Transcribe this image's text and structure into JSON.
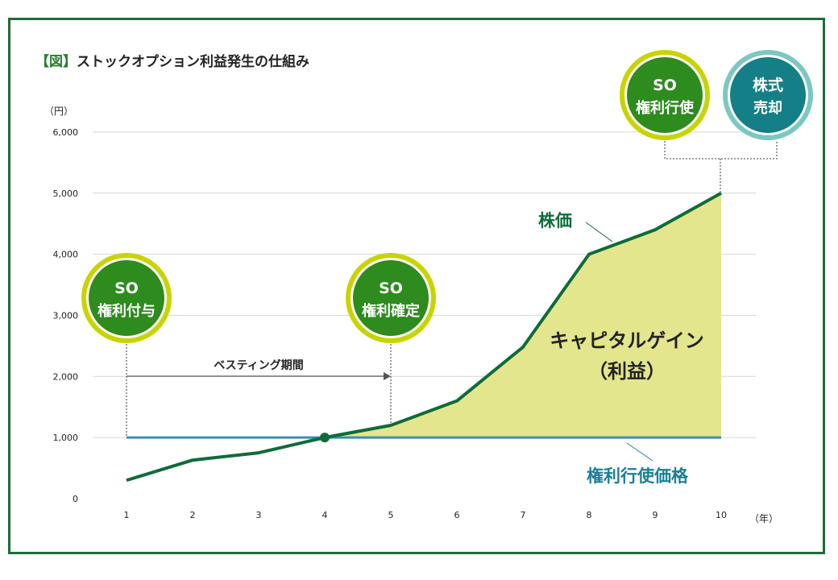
{
  "title": {
    "bracket": "【図】",
    "text": "ストックオプション利益発生の仕組み"
  },
  "chart_data": {
    "type": "line",
    "title": "ストックオプション利益発生の仕組み",
    "y_unit": "（円）",
    "x_unit": "（年）",
    "categories": [
      "1",
      "2",
      "3",
      "4",
      "5",
      "6",
      "7",
      "8",
      "9",
      "10"
    ],
    "y_ticks": [
      "0",
      "1,000",
      "2,000",
      "3,000",
      "4,000",
      "5,000",
      "6,000"
    ],
    "ylim": [
      0,
      6000
    ],
    "grid": true,
    "series": [
      {
        "name": "株価",
        "color": "#0f6b3a",
        "values": [
          300,
          630,
          750,
          1000,
          1200,
          1600,
          2480,
          4000,
          4400,
          5000
        ]
      },
      {
        "name": "権利行使価格",
        "color": "#3b8fb8",
        "values": [
          1000,
          1000,
          1000,
          1000,
          1000,
          1000,
          1000,
          1000,
          1000,
          1000
        ]
      }
    ],
    "area_label": {
      "line1": "キャピタルゲイン",
      "line2": "（利益）",
      "fill": "#e4e68e"
    },
    "vesting_label": "ベスティング期間",
    "events": [
      {
        "line1": "SO",
        "line2": "権利付与",
        "year": 1
      },
      {
        "line1": "SO",
        "line2": "権利確定",
        "year": 5
      },
      {
        "line1": "SO",
        "line2": "権利行使"
      },
      {
        "line1": "株式",
        "line2": "売却"
      }
    ],
    "colors": {
      "event_green": "#2e8b1e",
      "event_ring": "#c8d400",
      "sell_teal": "#147f86",
      "sell_ring": "#7cc7c1",
      "price_label": "#0f6b3a",
      "strike_label": "#1a7f94"
    }
  }
}
